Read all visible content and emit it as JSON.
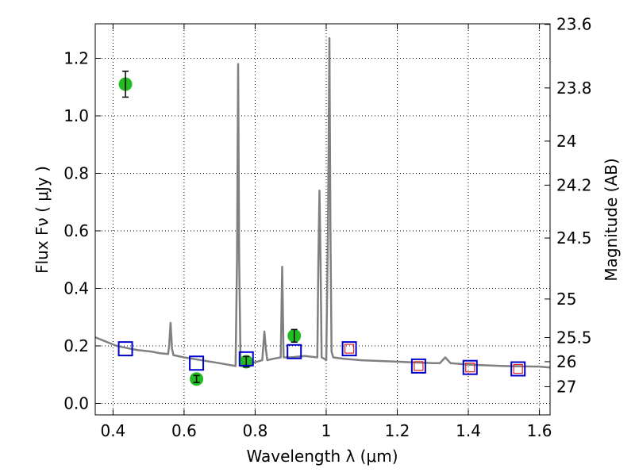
{
  "chart_data": {
    "type": "line",
    "xlabel": "Wavelength  λ (μm)",
    "ylabel": "Flux  Fν  ( μJy )",
    "ylabel_right": "Magnitude (AB)",
    "xlim": [
      0.35,
      1.63
    ],
    "ylim": [
      -0.04,
      1.32
    ],
    "x_ticks": [
      0.4,
      0.6,
      0.8,
      1.0,
      1.2,
      1.4,
      1.6
    ],
    "x_tick_labels": [
      "0.4",
      "0.6",
      "0.8",
      "1",
      "1.2",
      "1.4",
      "1.6"
    ],
    "y_ticks": [
      0.0,
      0.2,
      0.4,
      0.6,
      0.8,
      1.0,
      1.2
    ],
    "y_tick_labels": [
      "0.0",
      "0.2",
      "0.4",
      "0.6",
      "0.8",
      "1.0",
      "1.2"
    ],
    "right_ticks": [
      {
        "label": "23.6",
        "flux": 1.318
      },
      {
        "label": "23.8",
        "flux": 1.097
      },
      {
        "label": "24",
        "flux": 0.912
      },
      {
        "label": "24.2",
        "flux": 0.759
      },
      {
        "label": "24.5",
        "flux": 0.575
      },
      {
        "label": "25",
        "flux": 0.363
      },
      {
        "label": "25.5",
        "flux": 0.229
      },
      {
        "label": "26",
        "flux": 0.145
      },
      {
        "label": "27",
        "flux": 0.058
      }
    ],
    "grid": true,
    "series": [
      {
        "style": "model-spectrum",
        "color": "#808080",
        "x": [
          0.35,
          0.37,
          0.39,
          0.41,
          0.43,
          0.45,
          0.47,
          0.49,
          0.51,
          0.53,
          0.555,
          0.558,
          0.562,
          0.566,
          0.57,
          0.6,
          0.65,
          0.7,
          0.745,
          0.749,
          0.752,
          0.755,
          0.759,
          0.79,
          0.82,
          0.826,
          0.83,
          0.834,
          0.85,
          0.872,
          0.876,
          0.88,
          0.9,
          0.94,
          0.975,
          0.978,
          0.981,
          0.984,
          0.987,
          0.995,
          1.0,
          1.005,
          1.009,
          1.012,
          1.015,
          1.02,
          1.05,
          1.1,
          1.2,
          1.3,
          1.32,
          1.335,
          1.35,
          1.4,
          1.5,
          1.6,
          1.63
        ],
        "y": [
          0.23,
          0.22,
          0.21,
          0.2,
          0.195,
          0.19,
          0.185,
          0.183,
          0.18,
          0.175,
          0.172,
          0.2,
          0.28,
          0.19,
          0.168,
          0.16,
          0.15,
          0.14,
          0.13,
          0.5,
          1.18,
          0.5,
          0.13,
          0.14,
          0.15,
          0.25,
          0.19,
          0.15,
          0.155,
          0.16,
          0.475,
          0.16,
          0.16,
          0.165,
          0.16,
          0.5,
          0.74,
          0.5,
          0.16,
          0.155,
          0.15,
          0.6,
          1.27,
          0.6,
          0.18,
          0.16,
          0.155,
          0.15,
          0.145,
          0.14,
          0.14,
          0.16,
          0.14,
          0.135,
          0.13,
          0.128,
          0.125
        ]
      },
      {
        "style": "observed",
        "color": "#22bb22",
        "x": [
          0.435,
          0.635,
          0.775,
          0.91
        ],
        "y": [
          1.11,
          0.085,
          0.145,
          0.235
        ],
        "yerr": [
          0.045,
          0.012,
          0.018,
          0.022
        ]
      },
      {
        "style": "model-photometry",
        "color": "#0000cc",
        "x": [
          0.435,
          0.635,
          0.775,
          0.91,
          1.065,
          1.26,
          1.405,
          1.54
        ],
        "y": [
          0.19,
          0.14,
          0.155,
          0.18,
          0.19,
          0.13,
          0.125,
          0.12
        ]
      },
      {
        "style": "upper-limit",
        "color": "#dd2222",
        "x": [
          1.065,
          1.26,
          1.405,
          1.54
        ],
        "y": [
          0.19,
          0.13,
          0.125,
          0.12
        ]
      }
    ]
  }
}
